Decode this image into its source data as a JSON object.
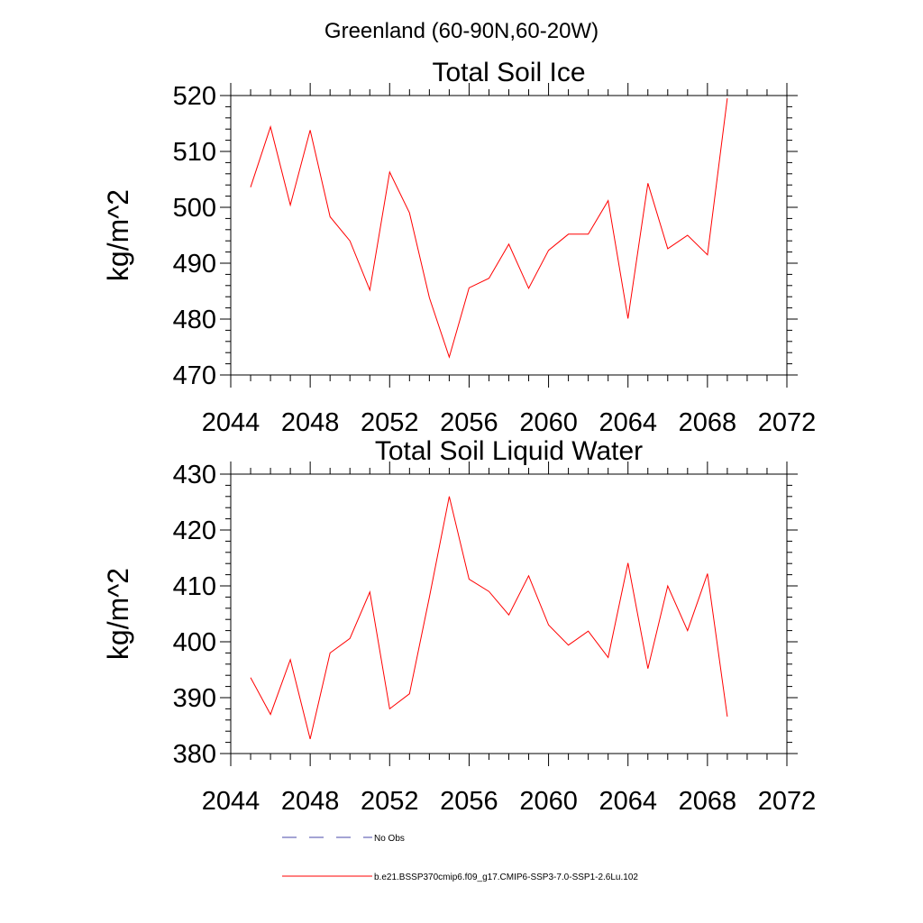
{
  "figure": {
    "suptitle": "Greenland (60-90N,60-20W)"
  },
  "legend": {
    "entries": [
      {
        "label": "No Obs",
        "color": "#4a4aa8",
        "dashed": true
      },
      {
        "label": "b.e21.BSSP370cmip6.f09_g17.CMIP6-SSP3-7.0-SSP1-2.6Lu.102",
        "color": "#ff0000",
        "dashed": false
      }
    ]
  },
  "chart_data": [
    {
      "type": "line",
      "title": "Total Soil Ice",
      "ylabel": "kg/m^2",
      "xlabel": "",
      "xlim": [
        2044,
        2072
      ],
      "ylim": [
        470,
        520
      ],
      "xticks": [
        2044,
        2048,
        2052,
        2056,
        2060,
        2064,
        2068,
        2072
      ],
      "yticks": [
        470,
        480,
        490,
        500,
        510,
        520
      ],
      "grid": false,
      "series": [
        {
          "color": "#ff0000",
          "x": [
            2045,
            2046,
            2047,
            2048,
            2049,
            2050,
            2051,
            2052,
            2053,
            2054,
            2055,
            2056,
            2057,
            2058,
            2059,
            2060,
            2061,
            2062,
            2063,
            2064,
            2065,
            2066,
            2067,
            2068,
            2069
          ],
          "values": [
            503.6,
            514.4,
            500.4,
            513.8,
            498.3,
            494.0,
            485.2,
            506.3,
            499.0,
            483.8,
            473.2,
            485.6,
            487.3,
            493.4,
            485.5,
            492.3,
            495.2,
            495.2,
            501.2,
            480.1,
            504.3,
            492.6,
            495.0,
            491.5,
            519.5
          ]
        }
      ]
    },
    {
      "type": "line",
      "title": "Total Soil Liquid Water",
      "ylabel": "kg/m^2",
      "xlabel": "",
      "xlim": [
        2044,
        2072
      ],
      "ylim": [
        380,
        430
      ],
      "xticks": [
        2044,
        2048,
        2052,
        2056,
        2060,
        2064,
        2068,
        2072
      ],
      "yticks": [
        380,
        390,
        400,
        410,
        420,
        430
      ],
      "grid": false,
      "series": [
        {
          "color": "#ff0000",
          "x": [
            2045,
            2046,
            2047,
            2048,
            2049,
            2050,
            2051,
            2052,
            2053,
            2054,
            2055,
            2056,
            2057,
            2058,
            2059,
            2060,
            2061,
            2062,
            2063,
            2064,
            2065,
            2066,
            2067,
            2068,
            2069
          ],
          "values": [
            393.6,
            387.0,
            396.8,
            382.6,
            398.0,
            400.6,
            408.9,
            388.0,
            390.7,
            408.0,
            426.0,
            411.2,
            409.0,
            404.8,
            411.8,
            403.0,
            399.4,
            401.9,
            397.2,
            414.1,
            395.2,
            410.0,
            402.0,
            412.2,
            386.6
          ]
        }
      ]
    }
  ]
}
